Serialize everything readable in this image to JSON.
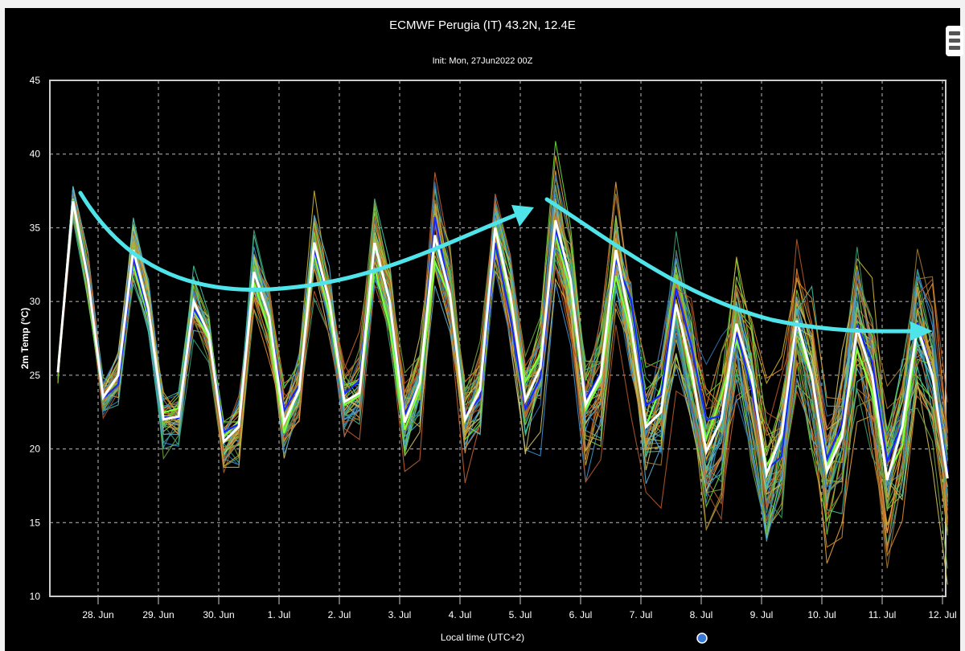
{
  "chart_data": {
    "type": "line",
    "title": "ECMWF Perugia (IT) 43.2N, 12.4E",
    "subtitle": "Init: Mon, 27Jun2022 00Z",
    "xlabel": "Local time (UTC+2)",
    "ylabel": "2m Temp (°C)",
    "ylim": [
      10,
      45
    ],
    "yticks": [
      10,
      15,
      20,
      25,
      30,
      35,
      40,
      45
    ],
    "xticks": [
      "28. Jun",
      "29. Jun",
      "30. Jun",
      "1. Jul",
      "2. Jul",
      "3. Jul",
      "4. Jul",
      "5. Jul",
      "6. Jul",
      "7. Jul",
      "8. Jul",
      "9. Jul",
      "10. Jul",
      "11. Jul",
      "12. Jul"
    ],
    "grid": true,
    "time_step_hours": 6,
    "first_time": "27 Jun 08:00 local",
    "control": {
      "color": "#ffffff",
      "values": [
        25.2,
        36.8,
        31.5,
        23.5,
        25.0,
        33.5,
        29.5,
        22.0,
        22.2,
        30.0,
        27.8,
        20.5,
        21.5,
        32.0,
        29.0,
        21.8,
        24.0,
        34.0,
        30.0,
        23.2,
        23.8,
        34.0,
        30.0,
        21.8,
        24.5,
        34.5,
        30.5,
        22.0,
        24.0,
        35.0,
        30.5,
        23.3,
        25.5,
        35.5,
        31.5,
        23.0,
        25.0,
        33.5,
        28.5,
        21.5,
        22.5,
        29.8,
        25.5,
        19.8,
        22.0,
        28.5,
        25.0,
        18.3,
        21.0,
        28.7,
        25.0,
        18.5,
        20.8,
        28.2,
        25.0,
        17.9,
        21.5,
        28.3,
        25.0,
        18.0
      ]
    },
    "ensemble": {
      "members": 50,
      "spread_by_day": [
        1.0,
        1.2,
        1.3,
        1.5,
        1.6,
        1.8,
        2.0,
        2.2,
        2.5,
        2.8,
        3.0,
        3.2,
        3.3,
        3.4,
        3.5
      ],
      "colors": [
        "#6ad83a",
        "#d98a2a",
        "#3a8fd0",
        "#c9b030",
        "#b0562a",
        "#3aa070",
        "#8fd04a",
        "#e0a040",
        "#5ab0d0",
        "#a07830",
        "#2f6fb0",
        "#d0c060",
        "#70a040",
        "#c06030",
        "#40c0a0"
      ],
      "highlight_colors": [
        "#7cff3c",
        "#1428ff"
      ]
    },
    "annotations": {
      "arrow_color": "#4fe3ea"
    }
  }
}
